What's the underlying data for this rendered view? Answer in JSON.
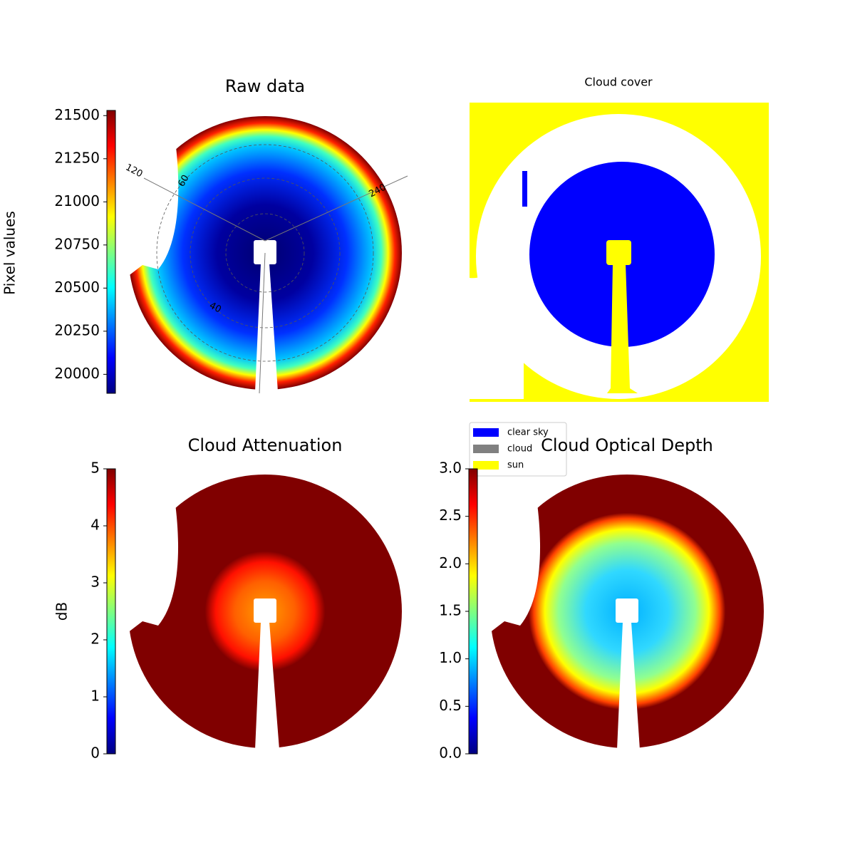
{
  "chart_data": [
    {
      "type": "image",
      "title": "Raw data",
      "colorbar_label": "Pixel values",
      "colormap": "jet",
      "clim": [
        19890,
        21530
      ],
      "cticks": [
        20000,
        20250,
        20500,
        20750,
        21000,
        21250,
        21500
      ],
      "annotations": [
        "120",
        "60",
        "240",
        "40"
      ]
    },
    {
      "type": "image",
      "title": "Cloud cover",
      "legend": [
        {
          "name": "clear sky",
          "color": "#0000ff"
        },
        {
          "name": "cloud",
          "color": "#808080"
        },
        {
          "name": "sun",
          "color": "#ffff00"
        }
      ]
    },
    {
      "type": "image",
      "title": "Cloud Attenuation",
      "colorbar_label": "dB",
      "colormap": "jet",
      "clim": [
        0,
        5
      ],
      "cticks": [
        0,
        1,
        2,
        3,
        4,
        5
      ]
    },
    {
      "type": "image",
      "title": "Cloud Optical Depth",
      "colormap": "jet",
      "clim": [
        0,
        3
      ],
      "cticks": [
        {
          "value": 0,
          "label": "0.0"
        },
        0.5,
        {
          "value": 1,
          "label": "1.0"
        },
        1.5,
        {
          "value": 2,
          "label": "2.0"
        },
        2.5,
        {
          "value": 3,
          "label": "3.0"
        }
      ]
    }
  ]
}
